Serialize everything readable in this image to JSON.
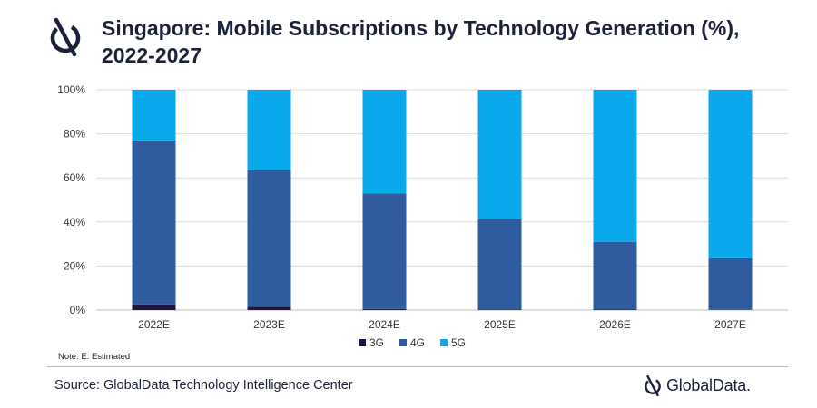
{
  "header": {
    "title_line1": "Singapore: Mobile Subscriptions by Technology Generation (%),",
    "title_line2": "2022-2027"
  },
  "note": "Note: E: Estimated",
  "source": "Source: GlobalData Technology Intelligence Center",
  "brand": {
    "name": "GlobalData.",
    "icon": "globaldata-logo-icon"
  },
  "colors": {
    "3G": "#1b1642",
    "4G": "#2f5c9f",
    "5G": "#0aa9ec",
    "grid": "#d9d9d9",
    "axis": "#bfbfbf"
  },
  "chart_data": {
    "type": "bar",
    "stacked": true,
    "title": "Singapore: Mobile Subscriptions by Technology Generation (%), 2022-2027",
    "categories": [
      "2022E",
      "2023E",
      "2024E",
      "2025E",
      "2026E",
      "2027E"
    ],
    "series": [
      {
        "name": "3G",
        "values": [
          2.5,
          1.5,
          0.5,
          0.3,
          0.2,
          0.1
        ]
      },
      {
        "name": "4G",
        "values": [
          74.5,
          62,
          52.5,
          41,
          30.8,
          23.4
        ]
      },
      {
        "name": "5G",
        "values": [
          23,
          36.5,
          47,
          58.7,
          69,
          76.5
        ]
      }
    ],
    "ylim": [
      0,
      100
    ],
    "yticks": [
      "0%",
      "20%",
      "40%",
      "60%",
      "80%",
      "100%"
    ],
    "xlabel": "",
    "ylabel": "",
    "grid": true,
    "legend": "bottom-center"
  }
}
